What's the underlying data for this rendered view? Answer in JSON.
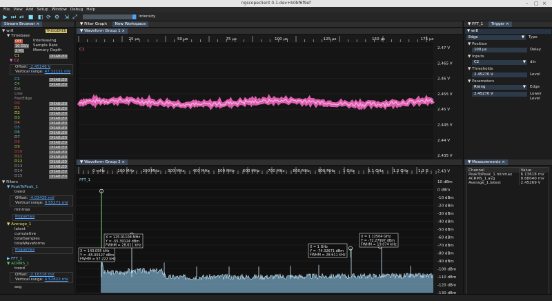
{
  "window": {
    "title": "ngscopeclient 0.1-dev+b0bf6f9ef"
  },
  "menu": [
    "File",
    "View",
    "Add",
    "Setup",
    "Window",
    "Debug",
    "Help"
  ],
  "toolbar": {
    "intensity_label": "Intensity",
    "intensity_level": 0.95
  },
  "stream_browser": {
    "tab": "Stream Browser",
    "instrument": "wr8",
    "instrument_badge": "TRIGGERED",
    "timebase_label": "Timebase",
    "timebase": [
      {
        "value": "OFF",
        "label": "Interleaving"
      },
      {
        "value": "10 GS/s",
        "label": "Sample Rate"
      },
      {
        "value": "2 MS",
        "label": "Memory Depth"
      }
    ],
    "c1": "C1",
    "c1_badge": "DISABLED",
    "c2": "C2",
    "c2_offset_label": "Offset:",
    "c2_offset": "-2.45146 V",
    "c2_range_label": "Vertical range:",
    "c2_range": "47.11111 mV",
    "channels": [
      {
        "name": "C3",
        "badge": "DISABLED",
        "color": "#56b6f0"
      },
      {
        "name": "C4",
        "badge": "DISABLED",
        "color": "#5fd45f"
      },
      {
        "name": "Ext",
        "badge": "",
        "color": "#9a9a9a"
      },
      {
        "name": "Line",
        "badge": "",
        "color": "#9a9a9a"
      },
      {
        "name": "FastEdge",
        "badge": "",
        "color": "#9a9a9a"
      },
      {
        "name": "D0",
        "badge": "DISABLED",
        "color": "#e04040"
      },
      {
        "name": "D1",
        "badge": "DISABLED",
        "color": "#e0a040"
      },
      {
        "name": "D2",
        "badge": "DISABLED",
        "color": "#e0e040"
      },
      {
        "name": "D3",
        "badge": "DISABLED",
        "color": "#80e040"
      },
      {
        "name": "D4",
        "badge": "DISABLED",
        "color": "#e08040"
      },
      {
        "name": "D5",
        "badge": "DISABLED",
        "color": "#40a0e0"
      },
      {
        "name": "D6",
        "badge": "DISABLED",
        "color": "#40e0a0"
      },
      {
        "name": "D7",
        "badge": "DISABLED",
        "color": "#c0c0c0"
      },
      {
        "name": "D8",
        "badge": "DISABLED",
        "color": "#b04040"
      },
      {
        "name": "D9",
        "badge": "DISABLED",
        "color": "#b0b040"
      },
      {
        "name": "D10",
        "badge": "DISABLED",
        "color": "#e04040"
      },
      {
        "name": "D11",
        "badge": "DISABLED",
        "color": "#e0a040"
      },
      {
        "name": "D12",
        "badge": "DISABLED",
        "color": "#e0e040"
      },
      {
        "name": "D13",
        "badge": "DISABLED",
        "color": "#9a9a9a"
      },
      {
        "name": "D14",
        "badge": "DISABLED",
        "color": "#9a9a9a"
      },
      {
        "name": "D15",
        "badge": "DISABLED",
        "color": "#9a9a9a"
      }
    ],
    "filters_label": "Filters",
    "f1_name": "PeakToPeak_1",
    "f1_stream": "trend",
    "f1_offset": "-4.03439 mV",
    "f1_range": "9.55271 mV",
    "f1_extra": "minmax",
    "properties": "Properties",
    "f2_name": "Average_1",
    "f2_streams": [
      "latest",
      "cumulative",
      "totalSamples",
      "totalWaveforms"
    ],
    "f3_name": "FFT_1",
    "f4_name": "ACRMS_1",
    "f4_stream": "trend",
    "f4_offset": "-2.16318 mV",
    "f4_range": "4.52822 mV",
    "f4_extra": "avg"
  },
  "filter_graph": {
    "tab": "Filter Graph",
    "tab2": "New Workspace"
  },
  "wg1": {
    "title": "Waveform Group 1",
    "time_ticks": [
      "25 µs",
      "50 µs",
      "75 µs",
      "100 µs",
      "125 µs",
      "150 µs",
      "175 µs"
    ],
    "channel": "C2",
    "volt_ticks": [
      "2.47 V",
      "2.465 V",
      "2.46 V",
      "2.455 V",
      "2.45 V",
      "2.445 V",
      "2.44 V",
      "2.435 V",
      "2.43 V"
    ]
  },
  "wg2": {
    "title": "Waveform Group 2",
    "freq_ticks": [
      "0 mHz",
      "100 MHz",
      "200 MHz",
      "300 MHz",
      "400 MHz",
      "500 MHz",
      "600 MHz",
      "700 MHz",
      "800 MHz",
      "900 MHz",
      "1 GHz",
      "1.1 GHz",
      "1.2 GHz",
      "1.3 G"
    ],
    "channel": "FFT_1",
    "db_ticks": [
      "10 dBm",
      "0 dBm",
      "-10 dBm",
      "-20 dBm",
      "-30 dBm",
      "-40 dBm",
      "-50 dBm",
      "-60 dBm",
      "-70 dBm",
      "-80 dBm",
      "-90 dBm",
      "-100 dBm",
      "-110 dBm",
      "-120 dBm",
      "-130 dBm"
    ],
    "peaks": [
      {
        "lines": [
          "X = 143.055 kHz",
          "Y = -65.05527 dBm",
          "FWHM = 57.222 kHz"
        ]
      },
      {
        "lines": [
          "X = 125.01108 MHz",
          "Y = -55.30124 dBm",
          "FWHM = 28.611 kHz"
        ]
      },
      {
        "lines": [
          "X = 1 GHz",
          "Y = -74.32671 dBm",
          "FWHM = 28.611 kHz"
        ]
      },
      {
        "lines": [
          "X = 1.12504 GHz",
          "Y = -72.27997 dBm",
          "FWHM = 19.074 kHz"
        ]
      }
    ]
  },
  "right_panel": {
    "tab1": "FFT_1",
    "tab2": "Trigger",
    "instrument": "wr8",
    "type_value": "Edge",
    "type_label": "Type",
    "position_label": "Position",
    "position_value": "100 µs",
    "delay_label": "Delay",
    "inputs_label": "Inputs",
    "input_value": "C2",
    "din_label": "din",
    "thresholds_label": "Thresholds",
    "level_value": "2.45270 V",
    "level_label": "Level",
    "parameters_label": "Parameters",
    "edge_value": "Rising",
    "edge_label": "Edge",
    "lower_value": "2.45270 V",
    "lower_label": "Lower Level"
  },
  "measurements": {
    "tab": "Measurements",
    "headers": [
      "Channel",
      "Value"
    ],
    "rows": [
      [
        "PeakToPeak_1.minmax",
        "6.13618 mV"
      ],
      [
        "ACRMS_1.avg",
        "8.68040 mV"
      ],
      [
        "Average_1.latest",
        "2.45269 V"
      ]
    ]
  },
  "colors": {
    "c2": "#ff69c8",
    "fft": "#9ad8ff",
    "accent": "#3b4a5c",
    "link": "#5aa8ff"
  }
}
